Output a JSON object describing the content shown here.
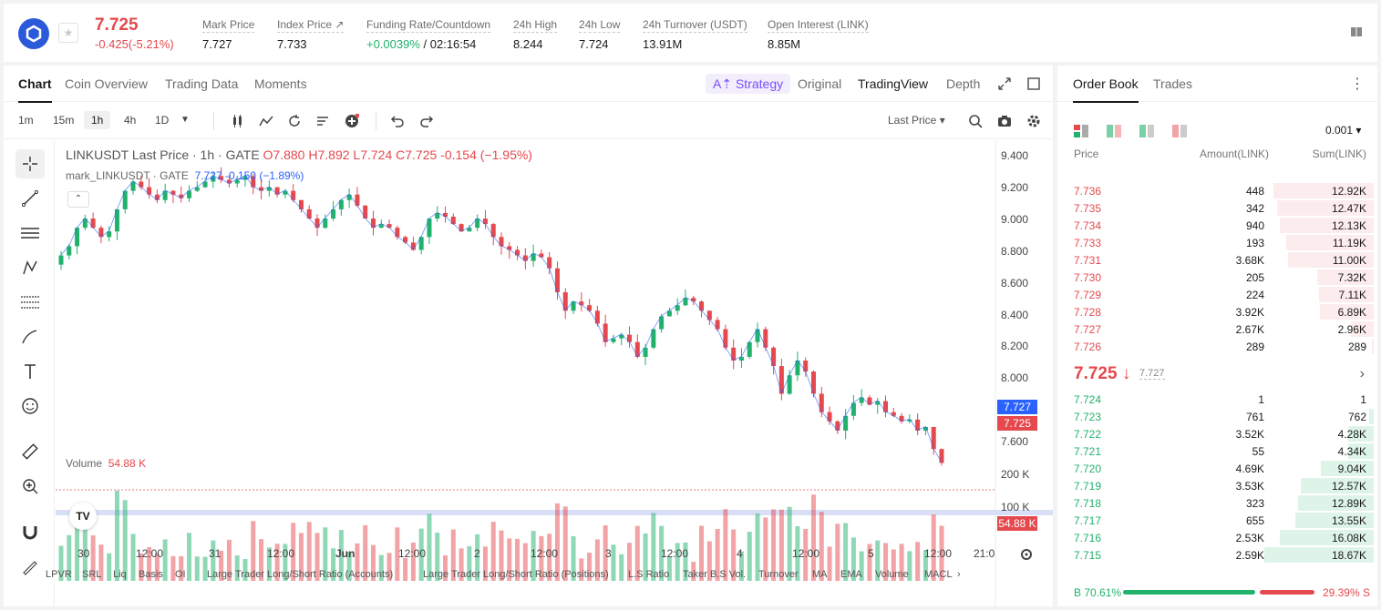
{
  "ticker": {
    "last_price": "7.725",
    "change": "-0.425(-5.21%)",
    "stats": [
      {
        "label": "Mark Price",
        "value": "7.727"
      },
      {
        "label": "Index Price",
        "value": "7.733"
      },
      {
        "label": "Funding Rate/Countdown",
        "value_green": "+0.0039%",
        "value": " / 02:16:54"
      },
      {
        "label": "24h High",
        "value": "8.244"
      },
      {
        "label": "24h Low",
        "value": "7.724"
      },
      {
        "label": "24h Turnover (USDT)",
        "value": "13.91M"
      },
      {
        "label": "Open Interest (LINK)",
        "value": "8.85M"
      }
    ]
  },
  "chart_tabs": [
    "Chart",
    "Coin Overview",
    "Trading Data",
    "Moments"
  ],
  "view_tabs": {
    "strategy": "Strategy",
    "original": "Original",
    "tradingview": "TradingView",
    "depth": "Depth"
  },
  "timeframes": [
    "1m",
    "15m",
    "1h",
    "4h",
    "1D"
  ],
  "price_source": "Last Price",
  "legend": {
    "title": "LINKUSDT Last Price · 1h · GATE",
    "ohlc": {
      "o": "O7.880",
      "h": "H7.892",
      "l": "L7.724",
      "c": "C7.725",
      "chg": "-0.154 (−1.95%)"
    },
    "mark": "mark_LINKUSDT · GATE",
    "mark_val": "7.727 -0.150 (−1.89%)"
  },
  "volume": {
    "label": "Volume",
    "value": "54.88 K"
  },
  "y_axis": [
    "9.400",
    "9.200",
    "9.000",
    "8.800",
    "8.600",
    "8.400",
    "8.200",
    "8.000",
    "7.600"
  ],
  "vol_axis": [
    "200 K",
    "100 K"
  ],
  "price_tags": {
    "mark": "7.727",
    "last": "7.725",
    "vol": "54.88 K"
  },
  "x_axis": [
    "30",
    "12:00",
    "31",
    "12:00",
    "Jun",
    "12:00",
    "2",
    "12:00",
    "3",
    "12:00",
    "4",
    "12:00",
    "5",
    "12:00",
    "21:0"
  ],
  "indicators": [
    "LPVR",
    "SRL",
    "Liq",
    "Basis",
    "OI",
    "Large Trader Long/Short Ratio (Accounts)",
    "Large Trader Long/Short Ratio (Positions)",
    "L.S Ratio",
    "Taker B.S Vol.",
    "Turnover",
    "MA",
    "EMA",
    "Volume",
    "MACL"
  ],
  "colors": {
    "up": "#20b26c",
    "down": "#e5484d",
    "mark": "#2962ff"
  },
  "chart_data": {
    "type": "candlestick",
    "y_range": [
      7.5,
      9.45
    ],
    "closes": [
      8.85,
      8.9,
      9.0,
      9.05,
      9.0,
      8.95,
      8.98,
      9.1,
      9.2,
      9.25,
      9.22,
      9.18,
      9.15,
      9.2,
      9.18,
      9.16,
      9.2,
      9.22,
      9.25,
      9.28,
      9.26,
      9.24,
      9.26,
      9.28,
      9.22,
      9.2,
      9.22,
      9.18,
      9.2,
      9.15,
      9.1,
      9.05,
      9.0,
      9.05,
      9.1,
      9.15,
      9.18,
      9.12,
      9.05,
      9.0,
      9.02,
      9.0,
      8.95,
      8.92,
      8.88,
      8.95,
      9.05,
      9.08,
      9.06,
      9.02,
      8.98,
      9.0,
      9.05,
      9.02,
      8.95,
      8.9,
      8.88,
      8.85,
      8.82,
      8.86,
      8.84,
      8.78,
      8.65,
      8.55,
      8.6,
      8.58,
      8.55,
      8.48,
      8.38,
      8.4,
      8.42,
      8.38,
      8.3,
      8.35,
      8.45,
      8.52,
      8.55,
      8.58,
      8.62,
      8.6,
      8.55,
      8.5,
      8.45,
      8.35,
      8.28,
      8.3,
      8.38,
      8.45,
      8.35,
      8.25,
      8.1,
      8.2,
      8.28,
      8.22,
      8.1,
      8.0,
      7.95,
      7.9,
      7.98,
      8.05,
      8.08,
      8.04,
      8.06,
      8.0,
      7.98,
      7.95,
      7.96,
      7.9,
      7.92,
      7.8,
      7.725
    ],
    "volume_hint": "bars in thousands"
  },
  "orderbook": {
    "tabs": [
      "Order Book",
      "Trades"
    ],
    "precision": "0.001",
    "headers": {
      "price": "Price",
      "amount": "Amount(LINK)",
      "sum": "Sum(LINK)"
    },
    "asks": [
      {
        "p": "7.736",
        "a": "448",
        "s": "12.92K",
        "d": 0.92
      },
      {
        "p": "7.735",
        "a": "342",
        "s": "12.47K",
        "d": 0.88
      },
      {
        "p": "7.734",
        "a": "940",
        "s": "12.13K",
        "d": 0.86
      },
      {
        "p": "7.733",
        "a": "193",
        "s": "11.19K",
        "d": 0.8
      },
      {
        "p": "7.731",
        "a": "3.68K",
        "s": "11.00K",
        "d": 0.78
      },
      {
        "p": "7.730",
        "a": "205",
        "s": "7.32K",
        "d": 0.52
      },
      {
        "p": "7.729",
        "a": "224",
        "s": "7.11K",
        "d": 0.5
      },
      {
        "p": "7.728",
        "a": "3.92K",
        "s": "6.89K",
        "d": 0.49
      },
      {
        "p": "7.727",
        "a": "2.67K",
        "s": "2.96K",
        "d": 0.21
      },
      {
        "p": "7.726",
        "a": "289",
        "s": "289",
        "d": 0.02
      }
    ],
    "mid": {
      "price": "7.725",
      "mark": "7.727"
    },
    "bids": [
      {
        "p": "7.724",
        "a": "1",
        "s": "1",
        "d": 0.0
      },
      {
        "p": "7.723",
        "a": "761",
        "s": "762",
        "d": 0.04
      },
      {
        "p": "7.722",
        "a": "3.52K",
        "s": "4.28K",
        "d": 0.23
      },
      {
        "p": "7.721",
        "a": "55",
        "s": "4.34K",
        "d": 0.23
      },
      {
        "p": "7.720",
        "a": "4.69K",
        "s": "9.04K",
        "d": 0.48
      },
      {
        "p": "7.719",
        "a": "3.53K",
        "s": "12.57K",
        "d": 0.67
      },
      {
        "p": "7.718",
        "a": "323",
        "s": "12.89K",
        "d": 0.69
      },
      {
        "p": "7.717",
        "a": "655",
        "s": "13.55K",
        "d": 0.72
      },
      {
        "p": "7.716",
        "a": "2.53K",
        "s": "16.08K",
        "d": 0.86
      },
      {
        "p": "7.715",
        "a": "2.59K",
        "s": "18.67K",
        "d": 1.0
      }
    ],
    "buy_ratio": "B 70.61%",
    "sell_ratio": "29.39% S",
    "buy_pct": 70.61
  }
}
